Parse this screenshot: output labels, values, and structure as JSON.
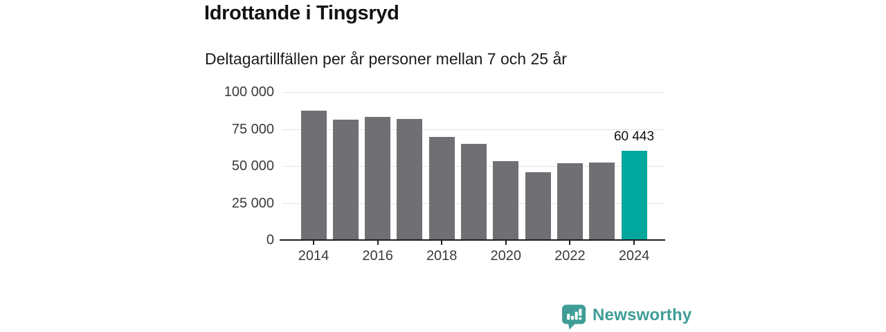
{
  "header": {
    "title": "Idrottande i Tingsryd",
    "subtitle": "Deltagartillfällen per år personer mellan 7 och 25 år"
  },
  "chart_data": {
    "type": "bar",
    "title": "Idrottande i Tingsryd",
    "subtitle": "Deltagartillfällen per år personer mellan 7 och 25 år",
    "categories": [
      "2014",
      "2015",
      "2016",
      "2017",
      "2018",
      "2019",
      "2020",
      "2021",
      "2022",
      "2023",
      "2024"
    ],
    "values": [
      87500,
      81500,
      83000,
      82000,
      69500,
      65000,
      53500,
      46000,
      52000,
      52500,
      60443
    ],
    "highlight_index": 10,
    "highlight_label": "60 443",
    "bar_color": "#6f6f74",
    "highlight_color": "#00a79c",
    "ylim": [
      0,
      100000
    ],
    "yticks": [
      {
        "value": 0,
        "label": "0"
      },
      {
        "value": 25000,
        "label": "25 000"
      },
      {
        "value": 50000,
        "label": "50 000"
      },
      {
        "value": 75000,
        "label": "75 000"
      },
      {
        "value": 100000,
        "label": "100 000"
      }
    ],
    "xticks": [
      {
        "index": 0,
        "label": "2014"
      },
      {
        "index": 2,
        "label": "2016"
      },
      {
        "index": 4,
        "label": "2018"
      },
      {
        "index": 6,
        "label": "2020"
      },
      {
        "index": 8,
        "label": "2022"
      },
      {
        "index": 10,
        "label": "2024"
      }
    ],
    "grid": true,
    "legend": "none",
    "gridline_color": "#e3e3e3",
    "axis_color": "#1f1f1f",
    "tick_label_color": "#3a3a3a"
  },
  "footer": {
    "brand": "Newsworthy",
    "brand_color": "#3f9d96",
    "logo_icon": "newsworthy-bar-chart-bubble-icon"
  }
}
